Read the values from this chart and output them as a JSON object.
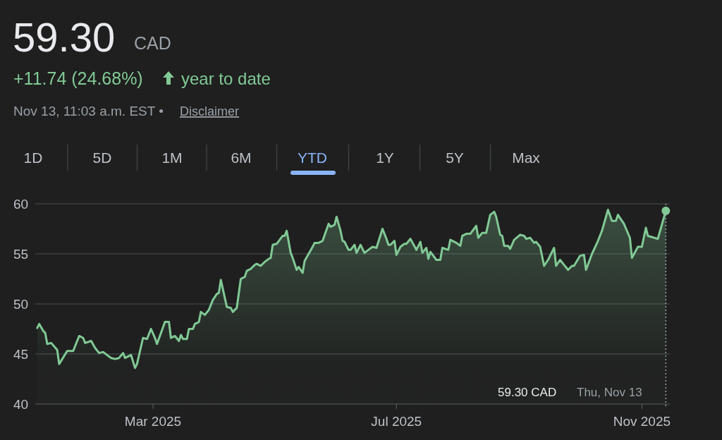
{
  "chart_data": {
    "type": "area",
    "title": "59.30",
    "subtitle": "+11.74 (24.68%)",
    "annotations": [
      "CAD",
      "year to date",
      "Nov 13, 11:03 a.m. EST •",
      "Disclaimer",
      "1D",
      "5D",
      "1M",
      "6M",
      "YTD",
      "1Y",
      "5Y",
      "Max",
      "59.30 CAD",
      "Thu, Nov 13"
    ],
    "x": [
      "2025-01-02",
      "2025-01-03",
      "2025-01-05",
      "2025-01-06",
      "2025-01-07",
      "2025-01-09",
      "2025-01-12",
      "2025-01-13",
      "2025-01-17",
      "2025-01-20",
      "2025-01-23",
      "2025-01-25",
      "2025-01-26",
      "2025-01-29",
      "2025-01-31",
      "2025-02-02",
      "2025-02-04",
      "2025-02-08",
      "2025-02-10",
      "2025-02-12",
      "2025-02-14",
      "2025-02-15",
      "2025-02-18",
      "2025-02-20",
      "2025-02-21",
      "2025-02-24",
      "2025-02-26",
      "2025-02-28",
      "2025-03-02",
      "2025-03-03",
      "2025-03-05",
      "2025-03-07",
      "2025-03-09",
      "2025-03-10",
      "2025-03-12",
      "2025-03-14",
      "2025-03-15",
      "2025-03-16",
      "2025-03-18",
      "2025-03-19",
      "2025-03-21",
      "2025-03-22",
      "2025-03-24",
      "2025-03-25",
      "2025-03-27",
      "2025-03-29",
      "2025-03-31",
      "2025-04-02",
      "2025-04-03",
      "2025-04-04",
      "2025-04-07",
      "2025-04-09",
      "2025-04-10",
      "2025-04-12",
      "2025-04-14",
      "2025-04-16",
      "2025-04-17",
      "2025-04-19",
      "2025-04-21",
      "2025-04-22",
      "2025-04-24",
      "2025-04-26",
      "2025-04-28",
      "2025-04-29",
      "2025-04-30",
      "2025-05-02",
      "2025-05-05",
      "2025-05-06",
      "2025-05-07",
      "2025-05-09",
      "2025-05-10",
      "2025-05-12",
      "2025-05-13",
      "2025-05-15",
      "2025-05-16",
      "2025-05-20",
      "2025-05-21",
      "2025-05-23",
      "2025-05-25",
      "2025-05-28",
      "2025-05-29",
      "2025-05-31",
      "2025-06-01",
      "2025-06-03",
      "2025-06-04",
      "2025-06-05",
      "2025-06-07",
      "2025-06-08",
      "2025-06-10",
      "2025-06-11",
      "2025-06-13",
      "2025-06-15",
      "2025-06-19",
      "2025-06-21",
      "2025-06-24",
      "2025-06-26",
      "2025-06-27",
      "2025-06-28",
      "2025-06-30",
      "2025-07-01",
      "2025-07-03",
      "2025-07-05",
      "2025-07-06",
      "2025-07-08",
      "2025-07-11",
      "2025-07-13",
      "2025-07-14",
      "2025-07-16",
      "2025-07-17",
      "2025-07-18",
      "2025-07-21",
      "2025-07-23",
      "2025-07-24",
      "2025-07-27",
      "2025-07-28",
      "2025-07-31",
      "2025-08-02",
      "2025-08-03",
      "2025-08-05",
      "2025-08-07",
      "2025-08-10",
      "2025-08-11",
      "2025-08-13",
      "2025-08-15",
      "2025-08-17",
      "2025-08-19",
      "2025-08-20",
      "2025-08-22",
      "2025-08-23",
      "2025-08-24",
      "2025-08-26",
      "2025-08-27",
      "2025-08-29",
      "2025-09-01",
      "2025-09-03",
      "2025-09-04",
      "2025-09-06",
      "2025-09-08",
      "2025-09-09",
      "2025-09-11",
      "2025-09-13",
      "2025-09-15",
      "2025-09-18",
      "2025-09-19",
      "2025-09-21",
      "2025-09-23",
      "2025-09-25",
      "2025-09-27",
      "2025-09-28",
      "2025-10-01",
      "2025-10-03",
      "2025-10-04",
      "2025-10-07",
      "2025-10-10",
      "2025-10-12",
      "2025-10-15",
      "2025-10-17",
      "2025-10-19",
      "2025-10-20",
      "2025-10-23",
      "2025-10-26",
      "2025-10-27",
      "2025-10-30",
      "2025-11-01",
      "2025-11-03",
      "2025-11-04",
      "2025-11-09",
      "2025-11-13"
    ],
    "values": [
      47.6,
      48.0,
      47.3,
      47.1,
      46.0,
      46.1,
      45.4,
      44.0,
      45.3,
      45.3,
      46.8,
      46.6,
      46.1,
      46.3,
      45.6,
      45.1,
      45.2,
      44.6,
      44.5,
      44.6,
      45.1,
      44.6,
      44.9,
      43.6,
      44.0,
      46.6,
      46.5,
      47.5,
      46.6,
      46.0,
      47.1,
      48.2,
      48.2,
      46.6,
      46.8,
      46.3,
      46.9,
      46.5,
      46.5,
      47.5,
      47.5,
      48.0,
      48.2,
      49.2,
      48.9,
      49.4,
      50.4,
      51.0,
      51.1,
      52.4,
      49.7,
      49.6,
      49.2,
      49.6,
      52.5,
      52.7,
      53.3,
      53.5,
      53.9,
      54.0,
      53.8,
      54.2,
      54.5,
      54.6,
      55.9,
      56.0,
      56.8,
      56.8,
      57.3,
      55.1,
      54.6,
      53.4,
      53.7,
      53.1,
      54.3,
      55.7,
      56.1,
      56.1,
      56.3,
      58.0,
      57.7,
      57.9,
      58.7,
      57.3,
      56.3,
      56.2,
      55.4,
      55.4,
      55.9,
      55.1,
      55.9,
      55.1,
      55.7,
      55.6,
      57.5,
      56.5,
      55.9,
      55.9,
      56.3,
      54.9,
      55.7,
      56.0,
      56.0,
      56.5,
      55.4,
      56.2,
      55.1,
      55.6,
      54.5,
      55.2,
      54.4,
      54.4,
      55.6,
      55.4,
      56.4,
      56.1,
      55.8,
      56.8,
      57.0,
      57.0,
      57.8,
      56.6,
      57.1,
      57.1,
      58.9,
      59.2,
      58.7,
      56.9,
      56.8,
      55.8,
      55.8,
      55.5,
      56.4,
      56.9,
      56.8,
      56.5,
      56.6,
      56.1,
      56.2,
      55.7,
      53.8,
      54.4,
      55.6,
      53.8,
      54.4,
      53.9,
      53.4,
      53.8,
      53.8,
      54.8,
      54.9,
      53.4,
      55.0,
      56.3,
      57.3,
      59.4,
      58.3,
      58.3,
      58.9,
      58.0,
      56.6,
      54.6,
      55.7,
      55.7,
      57.6,
      56.8,
      56.5,
      59.3
    ],
    "color": "#81c995",
    "xlim": [
      "2025-01-01",
      "2025-11-15"
    ],
    "xticks": [
      {
        "value": "2025-03-01",
        "label": "Mar 2025"
      },
      {
        "value": "2025-07-01",
        "label": "Jul 2025"
      },
      {
        "value": "2025-11-01",
        "label": "Nov 2025"
      }
    ],
    "ylim": [
      40,
      60
    ],
    "yticks": [
      40,
      45,
      50,
      55,
      60
    ],
    "grid": "y",
    "ref_lines": [
      {
        "axis": "x",
        "value": "2025-11-13",
        "color": "#9aa0a6",
        "line_style": "dotted"
      }
    ]
  }
}
